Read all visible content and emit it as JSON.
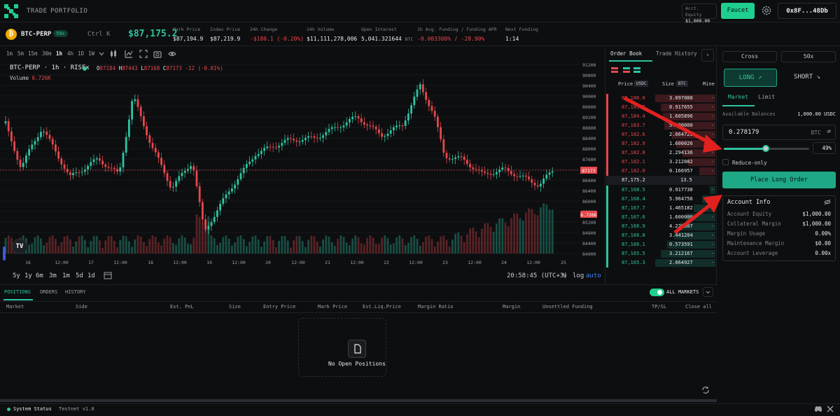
{
  "nav": {
    "trade": "TRADE",
    "portfolio": "PORTFOLIO"
  },
  "header": {
    "equity_label": "Acct. Equity",
    "equity_value": "$1,000.00",
    "faucet": "Faucet",
    "wallet": "0x8F...48Db"
  },
  "market": {
    "symbol": "BTC-PERP",
    "leverage_badge": "50x",
    "shortcut": "Ctrl K",
    "price": "$87,175.2",
    "stats": [
      {
        "label": "Mark Price",
        "value": "$87,194.9"
      },
      {
        "label": "Index Price",
        "value": "$87,219.9"
      },
      {
        "label": "24h Change",
        "value": "-$180.1 (-0.20%)"
      },
      {
        "label": "24h Volume",
        "value": "$11,111,278,006"
      },
      {
        "label": "Open Interest",
        "value": "5,041.321644",
        "unit": "BTC"
      },
      {
        "label": "1h Avg. Funding / Funding APR",
        "value": "-0.003300% / -28.90%"
      },
      {
        "label": "Next Funding",
        "value": "1:14"
      }
    ]
  },
  "chart_toolbar": {
    "timeframes": [
      "1m",
      "5m",
      "15m",
      "30m",
      "1h",
      "4h",
      "1D",
      "1W"
    ],
    "active": "1h"
  },
  "chart": {
    "title": "BTC-PERP · 1h · RISEx",
    "ohlc": {
      "o": "87184",
      "h": "87443",
      "l": "87168",
      "c": "87173",
      "chg": "-12 (-0.01%)"
    },
    "volume_label": "Volume",
    "volume_value": "6.726K",
    "price_tag": "87173",
    "volume_tag": "6.726K",
    "y_ticks": [
      "91200",
      "90800",
      "90400",
      "90000",
      "89600",
      "89200",
      "88800",
      "88400",
      "88000",
      "87600",
      "87200",
      "86800",
      "86400",
      "86000",
      "85600",
      "85200",
      "84800",
      "84400",
      "84000"
    ],
    "x_ticks": [
      "16",
      "12:00",
      "17",
      "12:00",
      "18",
      "12:00",
      "19",
      "12:00",
      "20",
      "12:00",
      "21",
      "12:00",
      "22",
      "12:00",
      "23",
      "12:00",
      "24",
      "12:00",
      "25"
    ],
    "ranges": [
      "5y",
      "1y",
      "6m",
      "3m",
      "1m",
      "5d",
      "1d"
    ],
    "time": "20:58:45 (UTC+3)",
    "pct": "%",
    "log": "log",
    "auto": "auto"
  },
  "orderbook": {
    "tab_book": "Order Book",
    "tab_history": "Trade History",
    "col_price": "Price",
    "col_price_unit": "USDC",
    "col_size": "Size",
    "col_size_unit": "BTC",
    "col_mine": "Mine",
    "asks": [
      {
        "price": "87,186.0",
        "size": "3.097088",
        "mine": "-",
        "depth": 0.55
      },
      {
        "price": "87,185.2",
        "size": "0.917655",
        "mine": "-",
        "depth": 0.5
      },
      {
        "price": "87,184.4",
        "size": "1.605896",
        "mine": "-",
        "depth": 0.48
      },
      {
        "price": "87,183.7",
        "size": "5.100000",
        "mine": "-",
        "depth": 0.47
      },
      {
        "price": "87,182.6",
        "size": "2.064723",
        "mine": "-",
        "depth": 0.4
      },
      {
        "price": "87,182.9",
        "size": "1.600026",
        "mine": "-",
        "depth": 0.36
      },
      {
        "price": "87,182.8",
        "size": "2.294136",
        "mine": "-",
        "depth": 0.3
      },
      {
        "price": "87,182.1",
        "size": "3.212082",
        "mine": "-",
        "depth": 0.25
      },
      {
        "price": "87,182.0",
        "size": "0.166957",
        "mine": "-",
        "depth": 0.15
      }
    ],
    "mid": {
      "price": "87,175.2",
      "spread": "13.5"
    },
    "bids": [
      {
        "price": "87,168.5",
        "size": "0.917730",
        "mine": "-",
        "depth": 0.05
      },
      {
        "price": "87,168.4",
        "size": "5.964756",
        "mine": "-",
        "depth": 0.12
      },
      {
        "price": "87,167.7",
        "size": "1.465182",
        "mine": "-",
        "depth": 0.2
      },
      {
        "price": "87,167.6",
        "size": "1.600000",
        "mine": "-",
        "depth": 0.27
      },
      {
        "price": "87,166.9",
        "size": "4.229507",
        "mine": "-",
        "depth": 0.33
      },
      {
        "price": "87,166.8",
        "size": "3.441204",
        "mine": "-",
        "depth": 0.38
      },
      {
        "price": "87,166.1",
        "size": "0.573591",
        "mine": "-",
        "depth": 0.44
      },
      {
        "price": "87,165.5",
        "size": "3.212167",
        "mine": "-",
        "depth": 0.5
      },
      {
        "price": "87,165.3",
        "size": "2.064927",
        "mine": "-",
        "depth": 0.55
      }
    ]
  },
  "order_panel": {
    "margin_mode": "Cross",
    "leverage": "50x",
    "long": "LONG ↗",
    "short": "SHORT ↘",
    "tab_market": "Market",
    "tab_limit": "Limit",
    "available_label": "Available Balances",
    "available_value": "1,000.00 USDC",
    "size_value": "0.278179",
    "size_unit": "BTC",
    "slider_pct_value": 49,
    "slider_pct": "49%",
    "reduce_only": "Reduce-only",
    "place": "Place Long Order"
  },
  "account": {
    "title": "Account Info",
    "rows": [
      {
        "label": "Account Equity",
        "value": "$1,000.00"
      },
      {
        "label": "Collateral Margin",
        "value": "$1,000.00"
      },
      {
        "label": "Margin Usage",
        "value": "0.00%"
      },
      {
        "label": "Maintenance Margin",
        "value": "$0.00"
      },
      {
        "label": "Account Leverage",
        "value": "0.00x"
      }
    ]
  },
  "positions": {
    "tabs": [
      "POSITIONS",
      "ORDERS",
      "HISTORY"
    ],
    "all_markets": "ALL MARKETS",
    "columns": [
      "Market",
      "Side",
      "Est. PnL",
      "Size",
      "Entry Price",
      "Mark Price",
      "Est.Liq.Price",
      "Margin Ratio",
      "Margin",
      "Unsettled Funding",
      "TP/SL",
      "Close all"
    ],
    "empty": "No Open Positions"
  },
  "footer": {
    "status": "System Status",
    "version": "Testnet v1.0"
  },
  "colors": {
    "accent": "#1fcf8f",
    "up": "#2ec4a0",
    "down": "#e5484d",
    "annotation": "#e0211f"
  }
}
